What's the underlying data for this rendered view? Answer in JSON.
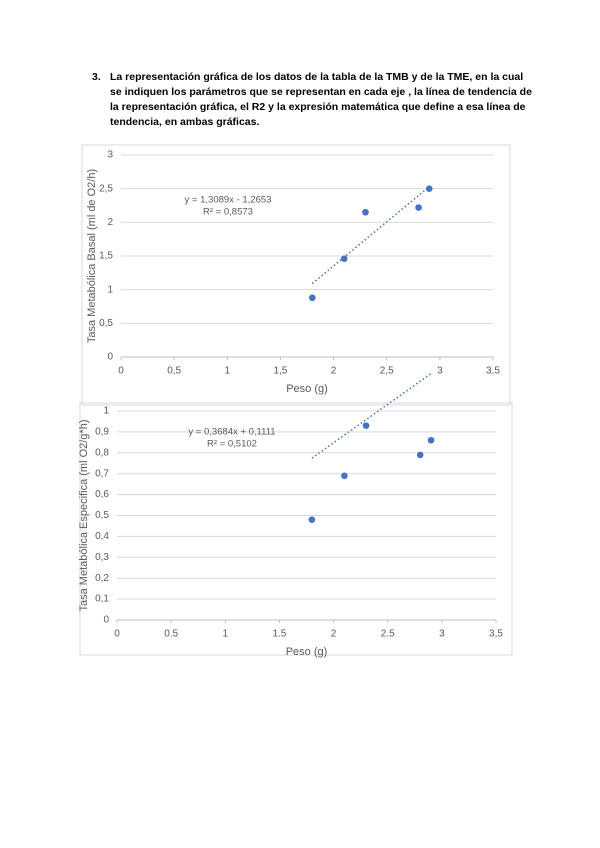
{
  "question": {
    "number": "3.",
    "text": "La representación gráfica de los datos de la tabla de la TMB y de la TME, en la cual se indiquen los parámetros que se representan en cada eje , la línea de tendencia de la representación gráfica, el R2 y la expresión matemática que define a esa línea de tendencia, en ambas gráficas."
  },
  "chart_data": [
    {
      "type": "scatter",
      "xlabel": "Peso (g)",
      "ylabel": "Tasa Metabólica Basal (ml de O2/h)",
      "x": [
        1.8,
        2.1,
        2.3,
        2.8,
        2.9
      ],
      "values": [
        0.88,
        1.46,
        2.15,
        2.22,
        2.5
      ],
      "color": "#4472c4",
      "xlim": [
        0,
        3.5
      ],
      "xticks": [
        0,
        {
          "value": 0.5,
          "label": "0,5"
        },
        1,
        {
          "value": 1.5,
          "label": "1,5"
        },
        2,
        {
          "value": 2.5,
          "label": "2,5"
        },
        3,
        {
          "value": 3.5,
          "label": "3,5"
        }
      ],
      "ylim": [
        0,
        3
      ],
      "yticks": [
        0,
        {
          "value": 0.5,
          "label": "0,5"
        },
        1,
        {
          "value": 1.5,
          "label": "1,5"
        },
        2,
        {
          "value": 2.5,
          "label": "2,5"
        },
        3
      ],
      "grid": true,
      "trendline": {
        "slope": 1.3089,
        "intercept": -1.2653,
        "equation": "y = 1,3089x - 1,2653",
        "r2": "R² = 0,8573"
      }
    },
    {
      "type": "scatter",
      "xlabel": "Peso (g)",
      "ylabel": "Tasa Metabólica Especifica (ml O2/g*h)",
      "x": [
        1.8,
        2.1,
        2.3,
        2.8,
        2.9
      ],
      "values": [
        0.48,
        0.69,
        0.93,
        0.79,
        0.86
      ],
      "color": "#4472c4",
      "xlim": [
        0,
        3.5
      ],
      "xticks": [
        0,
        0.5,
        1,
        1.5,
        2,
        2.5,
        3,
        {
          "value": 3.5,
          "label": "3,5"
        }
      ],
      "ylim": [
        0,
        1
      ],
      "yticks": [
        0,
        {
          "value": 0.1,
          "label": "0,1"
        },
        {
          "value": 0.2,
          "label": "0,2"
        },
        {
          "value": 0.3,
          "label": "0,3"
        },
        {
          "value": 0.4,
          "label": "0,4"
        },
        {
          "value": 0.5,
          "label": "0,5"
        },
        {
          "value": 0.6,
          "label": "0,6"
        },
        {
          "value": 0.7,
          "label": "0,7"
        },
        {
          "value": 0.8,
          "label": "0,8"
        },
        {
          "value": 0.9,
          "label": "0,9"
        },
        1
      ],
      "grid": true,
      "trendline": {
        "slope": 0.3684,
        "intercept": 0.1111,
        "equation": "y = 0,3684x + 0,1111",
        "r2": "R² = 0,5102"
      }
    }
  ]
}
